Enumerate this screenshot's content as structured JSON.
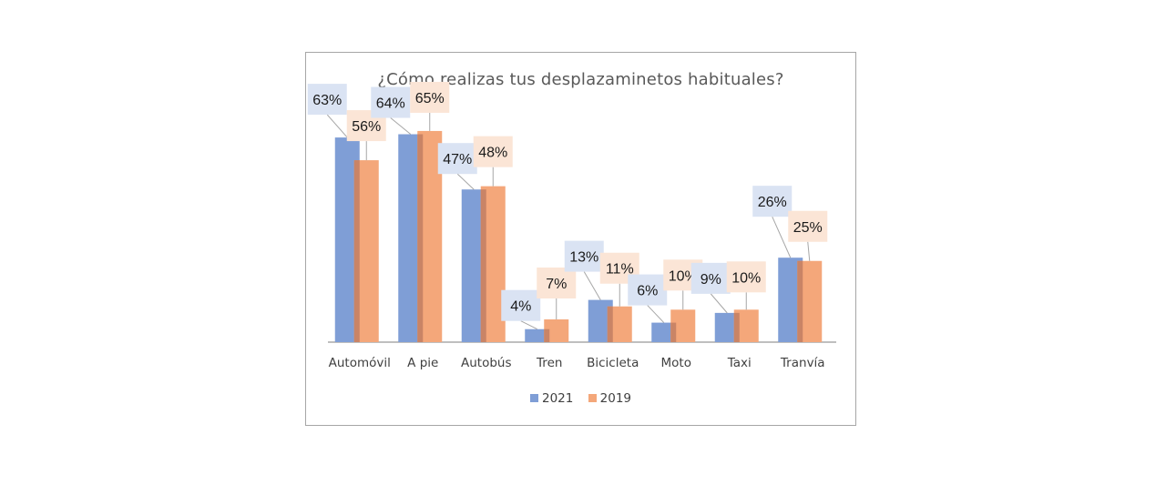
{
  "chart_data": {
    "type": "bar",
    "title": "¿Cómo realizas tus desplazaminetos habituales?",
    "xlabel": "",
    "ylabel": "",
    "ylim": [
      0,
      70
    ],
    "grid": false,
    "legend_position": "bottom",
    "categories": [
      "Automóvil",
      "A pie",
      "Autobús",
      "Tren",
      "Bicicleta",
      "Moto",
      "Taxi",
      "Tranvía"
    ],
    "series": [
      {
        "name": "2021",
        "color": "#7F9ED6",
        "values": [
          63,
          64,
          47,
          4,
          13,
          6,
          9,
          26
        ],
        "labels": [
          "63%",
          "64%",
          "47%",
          "4%",
          "13%",
          "6%",
          "9%",
          "26%"
        ],
        "label_bg": "#DAE3F3"
      },
      {
        "name": "2019",
        "color": "#F4A77A",
        "values": [
          56,
          65,
          48,
          7,
          11,
          10,
          10,
          25
        ],
        "labels": [
          "56%",
          "65%",
          "48%",
          "7%",
          "11%",
          "10%",
          "10%",
          "25%"
        ],
        "label_bg": "#FBE5D6"
      }
    ]
  }
}
